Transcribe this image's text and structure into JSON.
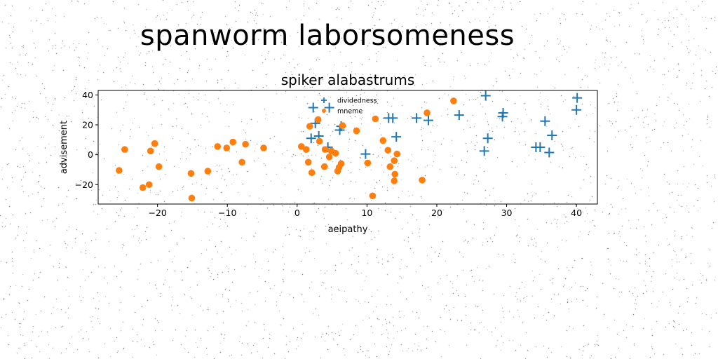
{
  "page_title": "spanworm laborsomeness",
  "chart_data": {
    "type": "scatter",
    "title": "spiker alabastrums",
    "xlabel": "aeipathy",
    "ylabel": "advisement",
    "xlim": [
      -28.5,
      43
    ],
    "ylim": [
      -33,
      43
    ],
    "xticks": [
      -20,
      -10,
      0,
      10,
      20,
      30,
      40
    ],
    "yticks": [
      -20,
      0,
      20,
      40
    ],
    "legend_position": "top-center",
    "grid": false,
    "series": [
      {
        "name": "dividedness",
        "marker": "plus",
        "color": "#1f77b4",
        "points": [
          [
            2.3,
            31.5
          ],
          [
            4.6,
            31.5
          ],
          [
            2.0,
            11.0
          ],
          [
            3.1,
            12.5
          ],
          [
            2.6,
            21.0
          ],
          [
            4.4,
            5.0
          ],
          [
            6.1,
            16.5
          ],
          [
            6.3,
            19.0
          ],
          [
            9.8,
            0.5
          ],
          [
            13.1,
            24.5
          ],
          [
            13.7,
            24.5
          ],
          [
            14.2,
            12.0
          ],
          [
            17.1,
            24.5
          ],
          [
            18.8,
            23.0
          ],
          [
            23.2,
            26.5
          ],
          [
            26.8,
            2.5
          ],
          [
            27.0,
            39.5
          ],
          [
            27.3,
            11.0
          ],
          [
            29.4,
            25.5
          ],
          [
            29.5,
            28.0
          ],
          [
            34.2,
            5.0
          ],
          [
            34.8,
            5.0
          ],
          [
            35.5,
            22.5
          ],
          [
            36.1,
            1.5
          ],
          [
            36.5,
            13.0
          ],
          [
            40.1,
            38.0
          ],
          [
            40.0,
            30.0
          ]
        ]
      },
      {
        "name": "mneme",
        "color": "#ff7f0e",
        "marker": "circle",
        "points": [
          [
            -25.5,
            -10.5
          ],
          [
            -24.7,
            3.5
          ],
          [
            -22.1,
            -22.0
          ],
          [
            -21.2,
            -20.0
          ],
          [
            -21.0,
            2.5
          ],
          [
            -20.4,
            7.5
          ],
          [
            -19.8,
            -8.0
          ],
          [
            -15.2,
            -12.5
          ],
          [
            -15.1,
            -29.0
          ],
          [
            -12.8,
            -11.0
          ],
          [
            -11.4,
            5.5
          ],
          [
            -10.1,
            4.5
          ],
          [
            -9.2,
            8.5
          ],
          [
            -7.9,
            -5.0
          ],
          [
            -7.4,
            7.0
          ],
          [
            -4.8,
            4.5
          ],
          [
            0.6,
            5.5
          ],
          [
            1.3,
            3.5
          ],
          [
            1.6,
            -5.0
          ],
          [
            1.8,
            19.0
          ],
          [
            2.1,
            -12.0
          ],
          [
            3.0,
            23.5
          ],
          [
            3.2,
            9.0
          ],
          [
            3.9,
            -8.0
          ],
          [
            4.0,
            3.5
          ],
          [
            4.6,
            -1.5
          ],
          [
            4.9,
            2.5
          ],
          [
            5.5,
            1.0
          ],
          [
            5.8,
            -11.0
          ],
          [
            6.0,
            -8.5
          ],
          [
            6.3,
            -6.0
          ],
          [
            6.5,
            19.5
          ],
          [
            8.5,
            16.0
          ],
          [
            10.1,
            -5.5
          ],
          [
            10.8,
            -27.5
          ],
          [
            11.2,
            24.0
          ],
          [
            12.3,
            9.5
          ],
          [
            13.0,
            3.0
          ],
          [
            13.3,
            -8.0
          ],
          [
            13.9,
            -4.0
          ],
          [
            13.9,
            -17.5
          ],
          [
            14.0,
            -13.0
          ],
          [
            14.3,
            0.5
          ],
          [
            17.9,
            -17.0
          ],
          [
            18.6,
            28.0
          ],
          [
            22.4,
            36.0
          ]
        ]
      }
    ]
  }
}
